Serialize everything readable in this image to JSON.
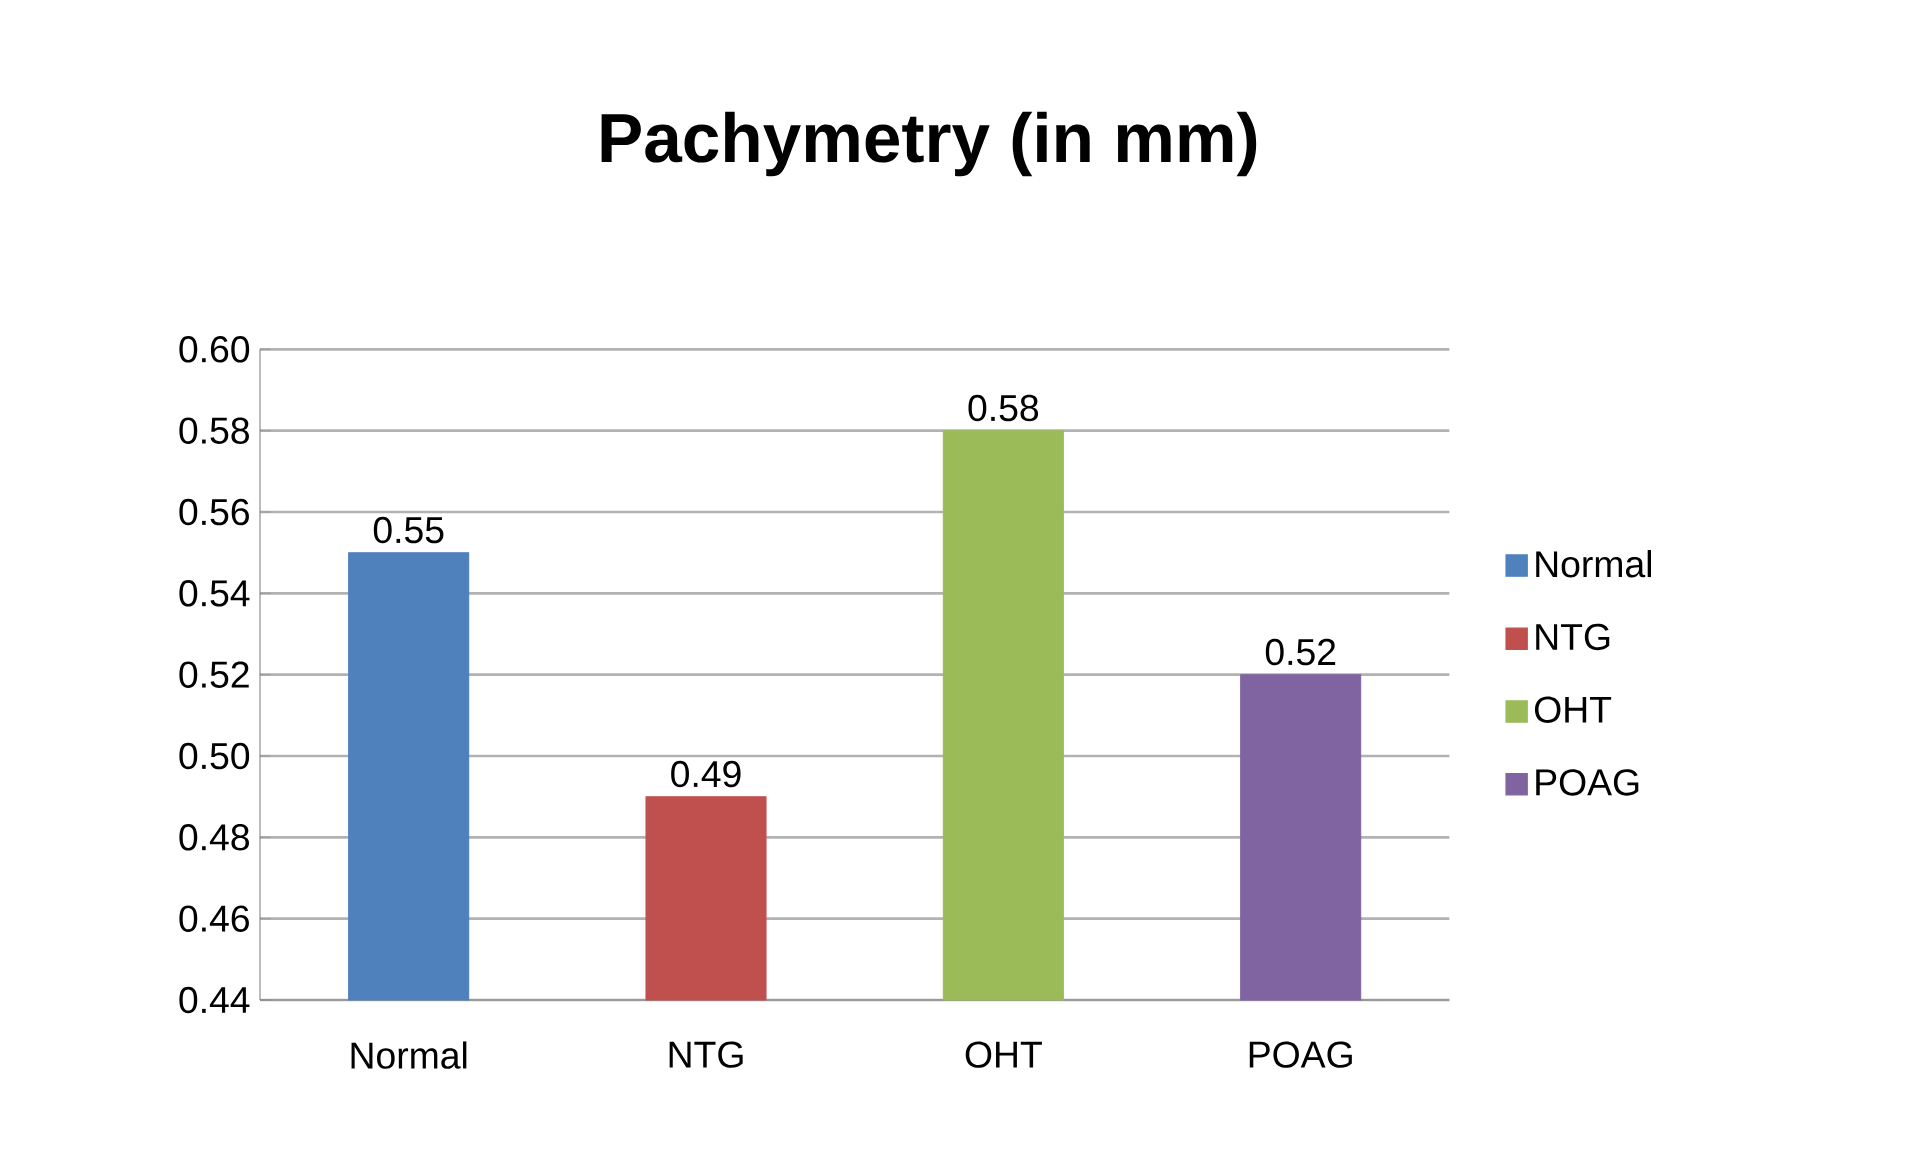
{
  "chart_data": {
    "type": "bar",
    "title": "Pachymetry (in mm)",
    "categories": [
      "Normal",
      "NTG",
      "OHT",
      "POAG"
    ],
    "series": [
      {
        "name": "Normal",
        "color": "#4f81bd",
        "values": [
          0.55,
          null,
          null,
          null
        ]
      },
      {
        "name": "NTG",
        "color": "#c0504d",
        "values": [
          null,
          0.49,
          null,
          null
        ]
      },
      {
        "name": "OHT",
        "color": "#9bbb59",
        "values": [
          null,
          null,
          0.58,
          null
        ]
      },
      {
        "name": "POAG",
        "color": "#8064a2",
        "values": [
          null,
          null,
          null,
          0.52
        ]
      }
    ],
    "ylim": [
      0.44,
      0.6
    ],
    "yticks": [
      {
        "value": 0.44,
        "label": "0.44"
      },
      {
        "value": 0.46,
        "label": "0.46"
      },
      {
        "value": 0.48,
        "label": "0.48"
      },
      {
        "value": 0.5,
        "label": "0.50"
      },
      {
        "value": 0.52,
        "label": "0.52"
      },
      {
        "value": 0.54,
        "label": "0.54"
      },
      {
        "value": 0.56,
        "label": "0.56"
      },
      {
        "value": 0.58,
        "label": "0.58"
      },
      {
        "value": 0.6,
        "label": "0.60"
      }
    ],
    "grid": "y",
    "legend": "right",
    "data_labels": true
  }
}
